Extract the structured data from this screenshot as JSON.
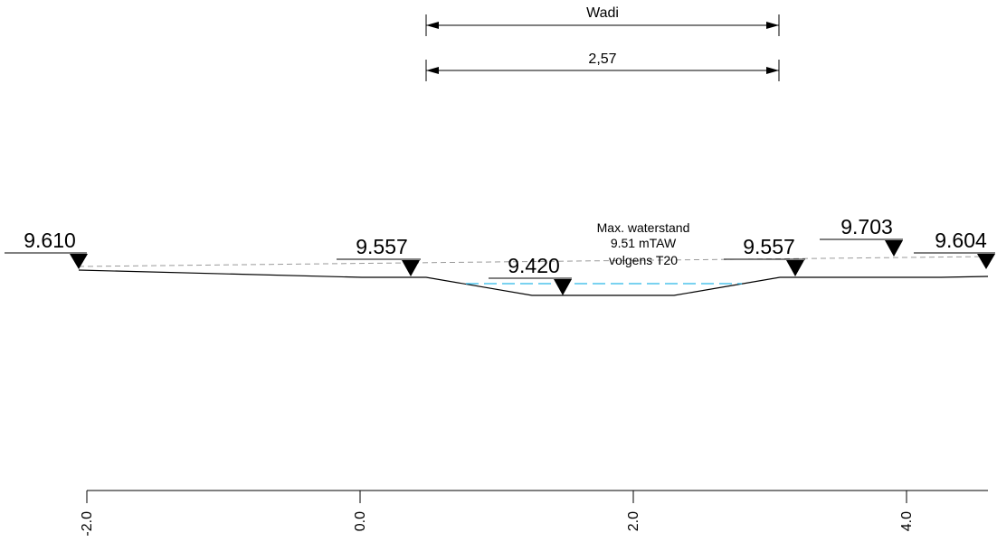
{
  "dimensions": {
    "wadi_label": "Wadi",
    "width_label": "2,57"
  },
  "water_note": {
    "line1": "Max. waterstand",
    "line2": "9.51 mTAW",
    "line3": "volgens T20"
  },
  "levels": [
    {
      "label": "9.610"
    },
    {
      "label": "9.557"
    },
    {
      "label": "9.420"
    },
    {
      "label": "9.557"
    },
    {
      "label": "9.703"
    },
    {
      "label": "9.604"
    }
  ],
  "axis": {
    "ticks": [
      "-2.0",
      "0.0",
      "2.0",
      "4.0"
    ]
  },
  "colors": {
    "line": "#000000",
    "reference_dash": "#9a9a9a",
    "water": "#29b6e8"
  }
}
